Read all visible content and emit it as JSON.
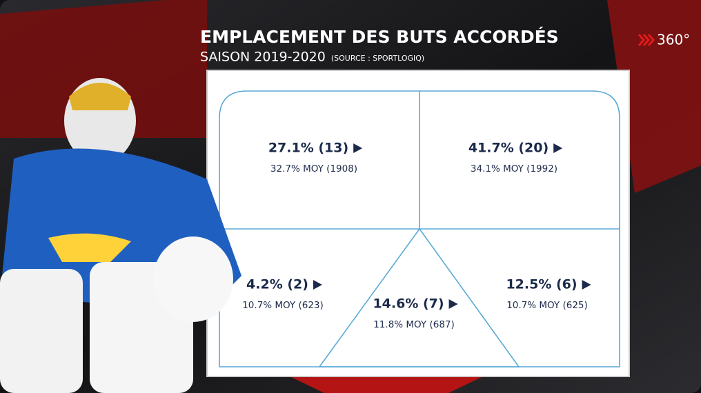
{
  "header": {
    "title": "EMPLACEMENT DES BUTS ACCORDÉS",
    "subtitle": "SAISON 2019-2020",
    "source": "(SOURCE : SPORTLOGIQ)"
  },
  "logo": {
    "text": "360°"
  },
  "zones": [
    {
      "label": "27.1% (13)",
      "average": "32.7% MOY (1908)"
    },
    {
      "label": "41.7% (20)",
      "average": "34.1% MOY (1992)"
    },
    {
      "label": "4.2% (2)",
      "average": "10.7% MOY (623)"
    },
    {
      "label": "14.6% (7)",
      "average": "11.8% MOY (687)"
    },
    {
      "label": "12.5% (6)",
      "average": "10.7% MOY (625)"
    }
  ]
}
